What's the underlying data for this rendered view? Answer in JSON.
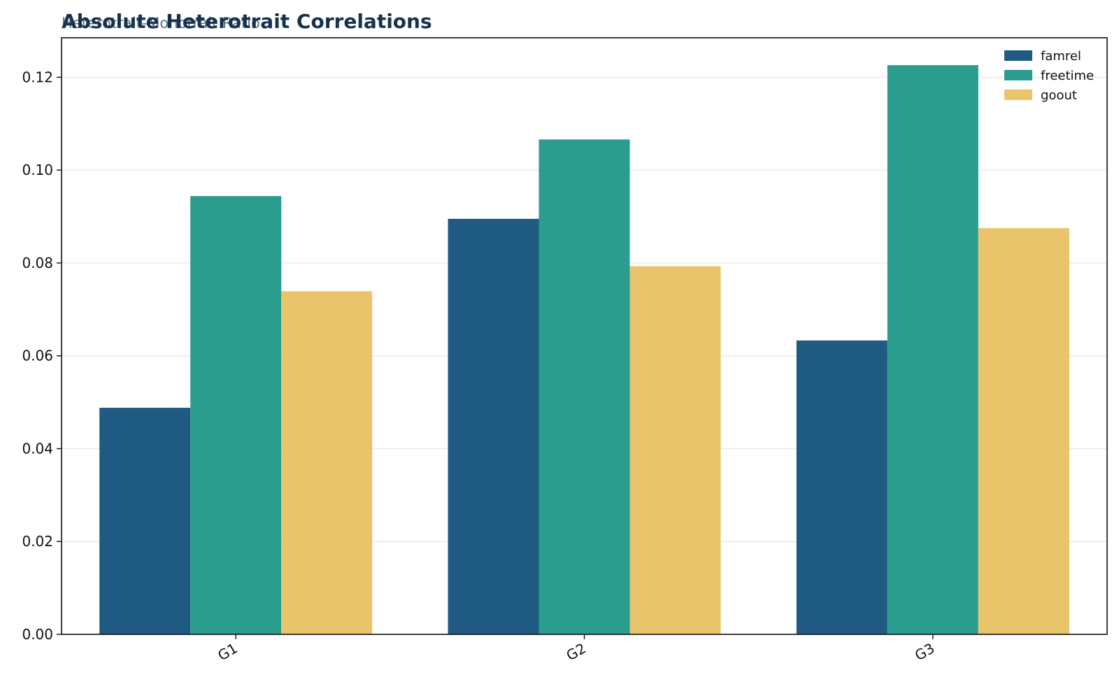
{
  "chart_data": {
    "type": "bar",
    "title": "Absolute Heterotrait Correlations",
    "subtitle": "Heterotrait-Monotrait Ratio",
    "xlabel": "",
    "ylabel": "",
    "categories": [
      "G1",
      "G2",
      "G3"
    ],
    "series": [
      {
        "name": "famrel",
        "color": "#1f5a82",
        "values": [
          0.0488,
          0.0895,
          0.0633
        ]
      },
      {
        "name": "freetime",
        "color": "#2a9d8f",
        "values": [
          0.0944,
          0.1066,
          0.1226
        ]
      },
      {
        "name": "goout",
        "color": "#e9c46a",
        "values": [
          0.0739,
          0.0793,
          0.0875
        ]
      }
    ],
    "ylim": [
      0,
      0.1285
    ],
    "yticks": [
      "0.00",
      "0.02",
      "0.04",
      "0.06",
      "0.08",
      "0.10",
      "0.12"
    ],
    "grid": "y",
    "legend": "top-right"
  }
}
